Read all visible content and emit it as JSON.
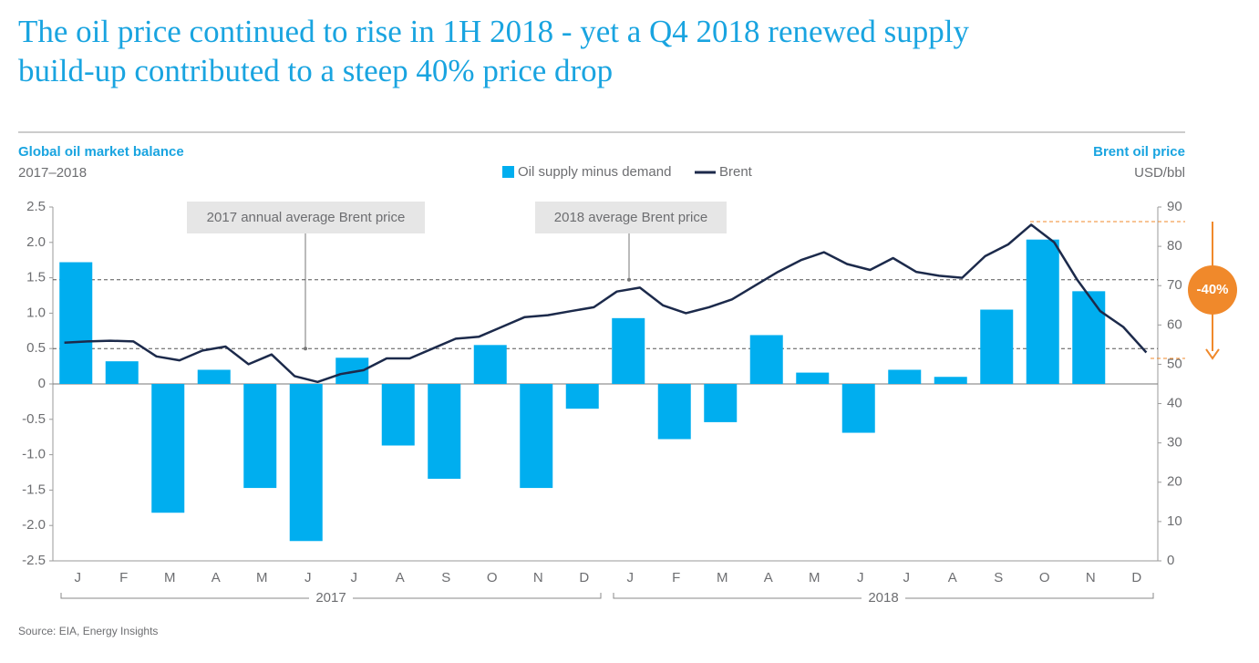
{
  "chart_data": {
    "type": "bar",
    "title_lines": [
      "The oil price continued to rise in 1H 2018 - yet a Q4 2018 renewed supply",
      "build-up contributed to a steep 40% price drop"
    ],
    "left_axis_title": "Global oil market balance",
    "left_axis_subtitle": "2017–2018",
    "right_axis_title": "Brent oil price",
    "right_axis_subtitle": "USD/bbl",
    "source": "Source: EIA, Energy Insights",
    "categories": [
      "J",
      "F",
      "M",
      "A",
      "M",
      "J",
      "J",
      "A",
      "S",
      "O",
      "N",
      "D",
      "J",
      "F",
      "M",
      "A",
      "M",
      "J",
      "J",
      "A",
      "S",
      "O",
      "N",
      "D"
    ],
    "x_groups": [
      "2017",
      "2018"
    ],
    "series": [
      {
        "name": "Oil supply minus demand",
        "color": "#00aeef",
        "values": [
          1.72,
          0.32,
          -1.82,
          0.2,
          -1.47,
          -2.22,
          0.37,
          -0.87,
          -1.34,
          0.55,
          -1.47,
          -0.35,
          0.93,
          -0.78,
          -0.54,
          0.69,
          0.16,
          -0.69,
          0.2,
          0.1,
          1.05,
          2.04,
          1.31,
          null
        ]
      },
      {
        "name": "Brent",
        "color": "#1c2a4b",
        "axis": "y2",
        "x": [
          0.25,
          0.75,
          1.25,
          1.75,
          2.25,
          2.75,
          3.25,
          3.75,
          4.25,
          4.75,
          5.25,
          5.75,
          6.25,
          6.75,
          7.25,
          7.75,
          8.25,
          8.75,
          9.25,
          9.75,
          10.25,
          10.75,
          11.25,
          11.75,
          12.25,
          12.75,
          13.25,
          13.75,
          14.25,
          14.75,
          15.25,
          15.75,
          16.25,
          16.75,
          17.25,
          17.75,
          18.25,
          18.75,
          19.25,
          19.75,
          20.25,
          20.75,
          21.25,
          21.75,
          22.25,
          22.75,
          23.25,
          23.75
        ],
        "values": [
          55.5,
          55.8,
          56.0,
          55.8,
          52.0,
          51.0,
          53.5,
          54.5,
          50.0,
          52.5,
          47.0,
          45.5,
          47.5,
          48.5,
          51.5,
          51.5,
          54.0,
          56.5,
          57.0,
          59.5,
          62.0,
          62.5,
          63.5,
          64.5,
          68.5,
          69.5,
          65.0,
          63.0,
          64.5,
          66.5,
          70.0,
          73.5,
          76.5,
          78.5,
          75.5,
          74.0,
          77.0,
          73.5,
          72.5,
          72.0,
          77.5,
          80.5,
          85.5,
          81.0,
          71.5,
          63.5,
          59.5,
          53.0
        ]
      }
    ],
    "ylim": [
      -2.5,
      2.5
    ],
    "yticks": [
      2.5,
      {
        "value": 2,
        "label": "2.0"
      },
      1.5,
      {
        "value": 1,
        "label": "1.0"
      },
      0.5,
      0,
      -0.5,
      {
        "value": -1,
        "label": "-1.0"
      },
      -1.5,
      {
        "value": -2,
        "label": "-2.0"
      },
      -2.5
    ],
    "y2lim": [
      0,
      90
    ],
    "y2ticks": [
      0,
      10,
      20,
      30,
      40,
      50,
      60,
      70,
      80,
      90
    ],
    "reference_lines": [
      {
        "label": "2017 annual average Brent price",
        "value": 54,
        "axis": "y2"
      },
      {
        "label": "2018 average Brent price",
        "value": 71.5,
        "axis": "y2"
      }
    ],
    "change": {
      "label": "-40%",
      "from": 86.3,
      "to": 51.5,
      "color": "#f0892b"
    },
    "grid": false
  }
}
